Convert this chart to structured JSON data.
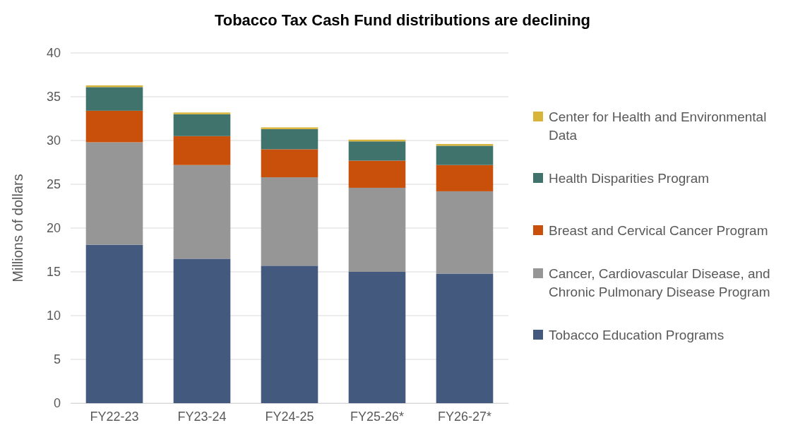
{
  "chart_data": {
    "type": "bar",
    "title": "Tobacco Tax Cash Fund distributions are declining",
    "ylabel": "Millions of dollars",
    "categories": [
      "FY22-23",
      "FY23-24",
      "FY24-25",
      "FY25-26*",
      "FY26-27*"
    ],
    "stacked": true,
    "ylim": [
      0,
      40
    ],
    "yticks": [
      0,
      5,
      10,
      15,
      20,
      25,
      30,
      35,
      40
    ],
    "grid": "y",
    "legend": "right",
    "series": [
      {
        "name": "Tobacco Education Programs",
        "color": "#44597e",
        "values": [
          18.1,
          16.5,
          15.7,
          15.0,
          14.8
        ]
      },
      {
        "name": "Cancer, Cardiovascular Disease, and Chronic Pulmonary Disease Program",
        "color": "#969696",
        "values": [
          11.7,
          10.7,
          10.1,
          9.6,
          9.4
        ]
      },
      {
        "name": "Breast and Cervical Cancer Program",
        "color": "#c8500a",
        "values": [
          3.6,
          3.3,
          3.2,
          3.1,
          3.0
        ]
      },
      {
        "name": "Health Disparities Program",
        "color": "#41736d",
        "values": [
          2.7,
          2.5,
          2.3,
          2.2,
          2.2
        ]
      },
      {
        "name": "Center for Health and Environmental Data",
        "color": "#d9b43a",
        "values": [
          0.2,
          0.2,
          0.2,
          0.2,
          0.2
        ]
      }
    ]
  }
}
